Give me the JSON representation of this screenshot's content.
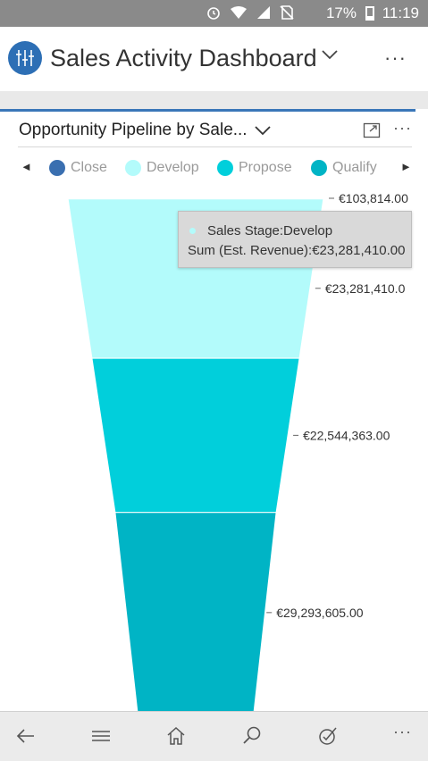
{
  "status_bar": {
    "battery": "17%",
    "time": "11:19"
  },
  "header": {
    "title": "Sales Activity Dashboard",
    "more": "···",
    "icon": "sales-dashboard-icon"
  },
  "chart_card": {
    "title": "Opportunity Pipeline by Sale...",
    "more": "···",
    "legend_prev": "◄",
    "legend_next": "►",
    "tooltip": {
      "line1": "Sales Stage:Develop",
      "line2": "Sum (Est. Revenue):€23,281,410.00",
      "color": "#b3fbfb"
    }
  },
  "chart_data": {
    "type": "funnel",
    "series": [
      {
        "name": "Close",
        "color": "#3a6fb0"
      },
      {
        "name": "Develop",
        "color": "#b3fbfb"
      },
      {
        "name": "Propose",
        "color": "#01cfdb"
      },
      {
        "name": "Qualify",
        "color": "#00b4c5"
      }
    ],
    "stages": [
      {
        "name": "Close",
        "value": 103814.0,
        "label": "€103,814.00",
        "color": "#3a6fb0"
      },
      {
        "name": "Develop",
        "value": 23281410.0,
        "label": "€23,281,410.0",
        "color": "#b3fbfb"
      },
      {
        "name": "Propose",
        "value": 22544363.0,
        "label": "€22,544,363.00",
        "color": "#01cfdb"
      },
      {
        "name": "Qualify",
        "value": 29293605.0,
        "label": "€29,293,605.00",
        "color": "#00b4c5"
      }
    ]
  },
  "nav_bar": {
    "more": "···"
  }
}
